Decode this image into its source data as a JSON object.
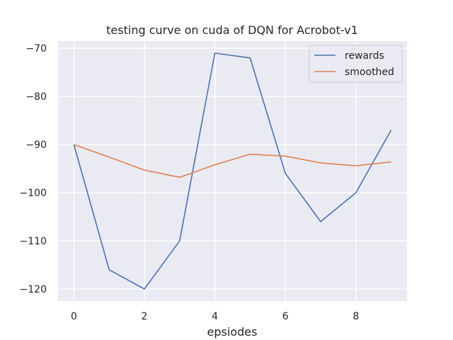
{
  "chart_data": {
    "type": "line",
    "title": "testing curve on cuda of DQN for Acrobot-v1",
    "xlabel": "epsiodes",
    "ylabel": "",
    "x": [
      0,
      1,
      2,
      3,
      4,
      5,
      6,
      7,
      8,
      9
    ],
    "xlim": [
      -0.45,
      9.45
    ],
    "ylim": [
      -122.5,
      -68.5
    ],
    "xticks": [
      0,
      2,
      4,
      6,
      8
    ],
    "xtick_labels": [
      "0",
      "2",
      "4",
      "6",
      "8"
    ],
    "yticks": [
      -120,
      -110,
      -100,
      -90,
      -80,
      -70
    ],
    "ytick_labels": [
      "−120",
      "−110",
      "−100",
      "−90",
      "−80",
      "−70"
    ],
    "grid": true,
    "legend_position": "top-right",
    "background": "#eaeaf2",
    "series": [
      {
        "name": "rewards",
        "color": "#4c72b0",
        "values": [
          -90,
          -116,
          -120,
          -110,
          -71,
          -72,
          -96,
          -106,
          -100,
          -87
        ]
      },
      {
        "name": "smoothed",
        "color": "#dd8452",
        "values": [
          -90,
          -92.6,
          -95.3,
          -96.8,
          -94.2,
          -92.0,
          -92.4,
          -93.8,
          -94.4,
          -93.6
        ]
      }
    ]
  }
}
